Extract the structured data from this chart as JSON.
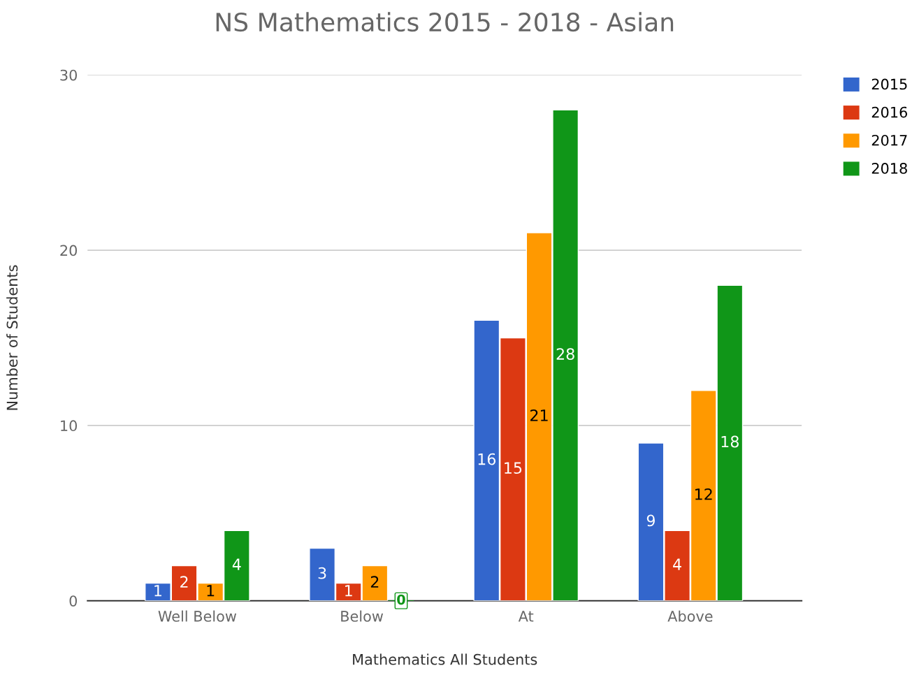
{
  "chart_data": {
    "type": "bar",
    "title": "NS Mathematics 2015 - 2018 - Asian",
    "xlabel": "Mathematics All Students",
    "ylabel": "Number of Students",
    "categories": [
      "Well Below",
      "Below",
      "At",
      "Above"
    ],
    "series": [
      {
        "name": "2015",
        "color": "#3366cc",
        "values": [
          1,
          3,
          16,
          9
        ]
      },
      {
        "name": "2016",
        "color": "#dc3912",
        "values": [
          2,
          1,
          15,
          4
        ]
      },
      {
        "name": "2017",
        "color": "#ff9900",
        "values": [
          1,
          2,
          21,
          12
        ]
      },
      {
        "name": "2018",
        "color": "#109618",
        "values": [
          4,
          0,
          28,
          18
        ]
      }
    ],
    "ylim": [
      0,
      30
    ],
    "yticks": [
      0,
      10,
      20,
      30
    ],
    "grid": "y",
    "legend": "top right",
    "data_labels": true
  }
}
